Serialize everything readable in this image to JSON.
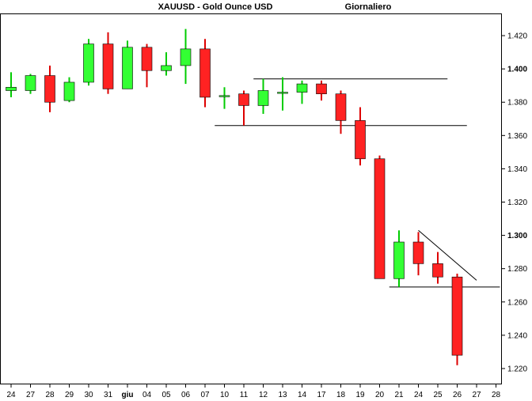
{
  "chart_data": {
    "type": "candlestick",
    "title": "XAUUSD - Gold Ounce USD",
    "subtitle": "Giornaliero",
    "ylim": [
      1.21,
      1.43
    ],
    "y_ticks": [
      {
        "v": 1.22,
        "label": "1.220",
        "bold": false
      },
      {
        "v": 1.24,
        "label": "1.240",
        "bold": false
      },
      {
        "v": 1.26,
        "label": "1.260",
        "bold": false
      },
      {
        "v": 1.28,
        "label": "1.280",
        "bold": false
      },
      {
        "v": 1.3,
        "label": "1.300",
        "bold": true
      },
      {
        "v": 1.32,
        "label": "1.320",
        "bold": false
      },
      {
        "v": 1.34,
        "label": "1.340",
        "bold": false
      },
      {
        "v": 1.36,
        "label": "1.360",
        "bold": false
      },
      {
        "v": 1.38,
        "label": "1.380",
        "bold": false
      },
      {
        "v": 1.4,
        "label": "1.400",
        "bold": true
      },
      {
        "v": 1.42,
        "label": "1.420",
        "bold": false
      }
    ],
    "categories": [
      {
        "label": "24",
        "bold": false
      },
      {
        "label": "27",
        "bold": false
      },
      {
        "label": "28",
        "bold": false
      },
      {
        "label": "29",
        "bold": false
      },
      {
        "label": "30",
        "bold": false
      },
      {
        "label": "31",
        "bold": false
      },
      {
        "label": "giu",
        "bold": true
      },
      {
        "label": "04",
        "bold": false
      },
      {
        "label": "05",
        "bold": false
      },
      {
        "label": "06",
        "bold": false
      },
      {
        "label": "07",
        "bold": false
      },
      {
        "label": "10",
        "bold": false
      },
      {
        "label": "11",
        "bold": false
      },
      {
        "label": "12",
        "bold": false
      },
      {
        "label": "13",
        "bold": false
      },
      {
        "label": "14",
        "bold": false
      },
      {
        "label": "17",
        "bold": false
      },
      {
        "label": "18",
        "bold": false
      },
      {
        "label": "19",
        "bold": false
      },
      {
        "label": "20",
        "bold": false
      },
      {
        "label": "21",
        "bold": false
      },
      {
        "label": "24",
        "bold": false
      },
      {
        "label": "25",
        "bold": false
      },
      {
        "label": "26",
        "bold": false
      },
      {
        "label": "27",
        "bold": false
      },
      {
        "label": "28",
        "bold": false
      }
    ],
    "candles": [
      {
        "open": 1.387,
        "high": 1.398,
        "low": 1.383,
        "close": 1.389
      },
      {
        "open": 1.387,
        "high": 1.397,
        "low": 1.385,
        "close": 1.396
      },
      {
        "open": 1.396,
        "high": 1.402,
        "low": 1.374,
        "close": 1.38
      },
      {
        "open": 1.381,
        "high": 1.395,
        "low": 1.38,
        "close": 1.392
      },
      {
        "open": 1.392,
        "high": 1.418,
        "low": 1.39,
        "close": 1.415
      },
      {
        "open": 1.415,
        "high": 1.422,
        "low": 1.385,
        "close": 1.388
      },
      {
        "open": 1.388,
        "high": 1.417,
        "low": 1.388,
        "close": 1.413
      },
      {
        "open": 1.413,
        "high": 1.415,
        "low": 1.389,
        "close": 1.399
      },
      {
        "open": 1.399,
        "high": 1.41,
        "low": 1.396,
        "close": 1.402
      },
      {
        "open": 1.402,
        "high": 1.424,
        "low": 1.391,
        "close": 1.412
      },
      {
        "open": 1.412,
        "high": 1.418,
        "low": 1.377,
        "close": 1.383
      },
      {
        "open": 1.384,
        "high": 1.389,
        "low": 1.376,
        "close": 1.384
      },
      {
        "open": 1.385,
        "high": 1.387,
        "low": 1.366,
        "close": 1.378
      },
      {
        "open": 1.378,
        "high": 1.394,
        "low": 1.373,
        "close": 1.387
      },
      {
        "open": 1.386,
        "high": 1.395,
        "low": 1.375,
        "close": 1.386
      },
      {
        "open": 1.386,
        "high": 1.393,
        "low": 1.379,
        "close": 1.391
      },
      {
        "open": 1.391,
        "high": 1.393,
        "low": 1.381,
        "close": 1.385
      },
      {
        "open": 1.385,
        "high": 1.387,
        "low": 1.361,
        "close": 1.369
      },
      {
        "open": 1.369,
        "high": 1.377,
        "low": 1.342,
        "close": 1.346
      },
      {
        "open": 1.346,
        "high": 1.348,
        "low": 1.274,
        "close": 1.274
      },
      {
        "open": 1.274,
        "high": 1.303,
        "low": 1.269,
        "close": 1.296
      },
      {
        "open": 1.296,
        "high": 1.302,
        "low": 1.276,
        "close": 1.283
      },
      {
        "open": 1.283,
        "high": 1.29,
        "low": 1.271,
        "close": 1.275
      },
      {
        "open": 1.275,
        "high": 1.277,
        "low": 1.222,
        "close": 1.228
      }
    ],
    "trendlines": [
      {
        "x0": 12.5,
        "y0": 1.394,
        "x1": 22.5,
        "y1": 1.394
      },
      {
        "x0": 10.5,
        "y0": 1.366,
        "x1": 23.5,
        "y1": 1.366
      },
      {
        "x0": 19.5,
        "y0": 1.269,
        "x1": 25.2,
        "y1": 1.269
      },
      {
        "x0": 21.0,
        "y0": 1.303,
        "x1": 24.0,
        "y1": 1.273
      }
    ],
    "colors": {
      "up": "#33ff33",
      "down": "#ff2222",
      "outline": "#000000",
      "wick_up": "#00cc00",
      "wick_down": "#dd0000",
      "background": "#ffffff"
    }
  }
}
